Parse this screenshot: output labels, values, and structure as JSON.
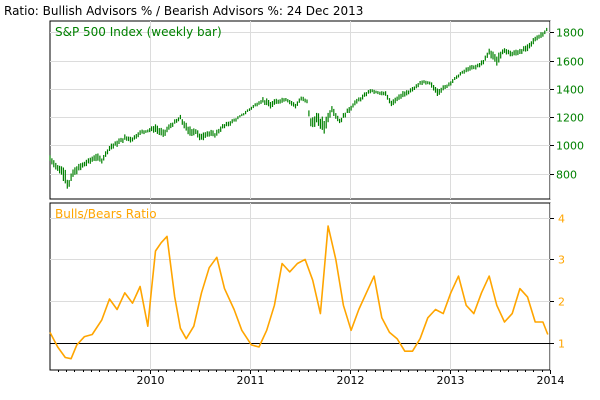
{
  "title": "Ratio: Bullish Advisors % / Bearish Advisors %: 24 Dec 2013",
  "colors": {
    "price": "#008000",
    "ratio": "#ffa500",
    "reference_line": "#000000",
    "grid": "#dcdcdc"
  },
  "chart_data": [
    {
      "type": "bar",
      "panel": "top",
      "label": "S&P 500 Index (weekly bar)",
      "xlim": [
        "2009-01-02",
        "2014-01-01"
      ],
      "ylim": [
        620,
        1880
      ],
      "yticks": [
        800,
        1000,
        1200,
        1400,
        1600,
        1800
      ],
      "grid": true,
      "y_axis_side": "right",
      "bar_style": "weekly high-low range",
      "series": [
        {
          "x": [
            "2009-01-02",
            "2009-01-30",
            "2009-02-27",
            "2009-03-09",
            "2009-03-27",
            "2009-04-24",
            "2009-05-22",
            "2009-06-19",
            "2009-07-10",
            "2009-08-07",
            "2009-09-04",
            "2009-10-02",
            "2009-10-30",
            "2009-11-27",
            "2009-12-25",
            "2010-01-22",
            "2010-02-19",
            "2010-03-19",
            "2010-04-23",
            "2010-05-21",
            "2010-06-18",
            "2010-07-02",
            "2010-07-30",
            "2010-08-27",
            "2010-09-24",
            "2010-10-22",
            "2010-11-19",
            "2010-12-17",
            "2011-01-14",
            "2011-02-18",
            "2011-03-18",
            "2011-04-15",
            "2011-05-13",
            "2011-06-17",
            "2011-07-08",
            "2011-07-29",
            "2011-08-12",
            "2011-09-02",
            "2011-09-30",
            "2011-10-28",
            "2011-11-25",
            "2011-12-23",
            "2012-01-20",
            "2012-02-17",
            "2012-03-16",
            "2012-04-13",
            "2012-05-11",
            "2012-06-01",
            "2012-06-29",
            "2012-07-27",
            "2012-08-24",
            "2012-09-21",
            "2012-10-19",
            "2012-11-16",
            "2012-12-14",
            "2013-01-11",
            "2013-02-08",
            "2013-03-08",
            "2013-04-05",
            "2013-05-03",
            "2013-05-24",
            "2013-06-21",
            "2013-07-19",
            "2013-08-16",
            "2013-09-13",
            "2013-10-11",
            "2013-11-08",
            "2013-12-06",
            "2013-12-24"
          ],
          "high": [
            935,
            870,
            850,
            740,
            840,
            880,
            910,
            945,
            920,
            1005,
            1040,
            1075,
            1070,
            1110,
            1120,
            1150,
            1110,
            1160,
            1215,
            1140,
            1130,
            1090,
            1110,
            1100,
            1150,
            1180,
            1205,
            1245,
            1290,
            1340,
            1315,
            1335,
            1345,
            1300,
            1350,
            1330,
            1200,
            1230,
            1190,
            1290,
            1190,
            1265,
            1320,
            1360,
            1405,
            1385,
            1380,
            1330,
            1370,
            1390,
            1420,
            1465,
            1455,
            1410,
            1430,
            1475,
            1520,
            1560,
            1575,
            1610,
            1690,
            1645,
            1695,
            1670,
            1690,
            1715,
            1775,
            1810,
            1840
          ],
          "low": [
            880,
            810,
            740,
            670,
            760,
            820,
            860,
            890,
            870,
            960,
            990,
            1025,
            1020,
            1070,
            1090,
            1090,
            1050,
            1120,
            1170,
            1060,
            1070,
            1020,
            1060,
            1050,
            1110,
            1140,
            1180,
            1220,
            1260,
            1300,
            1250,
            1290,
            1310,
            1260,
            1310,
            1290,
            1110,
            1140,
            1080,
            1230,
            1150,
            1210,
            1280,
            1320,
            1370,
            1360,
            1340,
            1270,
            1320,
            1340,
            1390,
            1430,
            1420,
            1350,
            1390,
            1440,
            1490,
            1520,
            1535,
            1570,
            1640,
            1560,
            1650,
            1620,
            1640,
            1660,
            1730,
            1770,
            1810
          ]
        }
      ]
    },
    {
      "type": "line",
      "panel": "bottom",
      "label": "Bulls/Bears Ratio",
      "xlim": [
        "2009-01-02",
        "2014-01-01"
      ],
      "ylim": [
        0.35,
        4.35
      ],
      "yticks": [
        1,
        2,
        3,
        4
      ],
      "reference_line_y": 1,
      "grid": true,
      "y_axis_side": "right",
      "xticks": [
        "2010",
        "2011",
        "2012",
        "2013",
        "2014"
      ],
      "series": [
        {
          "x": [
            "2009-01-02",
            "2009-01-30",
            "2009-02-27",
            "2009-03-20",
            "2009-04-10",
            "2009-05-08",
            "2009-06-05",
            "2009-07-10",
            "2009-08-07",
            "2009-09-04",
            "2009-10-02",
            "2009-10-30",
            "2009-11-27",
            "2009-12-25",
            "2010-01-08",
            "2010-01-22",
            "2010-02-12",
            "2010-03-05",
            "2010-04-02",
            "2010-04-23",
            "2010-05-14",
            "2010-06-11",
            "2010-07-09",
            "2010-08-06",
            "2010-09-03",
            "2010-10-01",
            "2010-11-05",
            "2010-12-03",
            "2011-01-07",
            "2011-02-04",
            "2011-03-04",
            "2011-04-01",
            "2011-04-29",
            "2011-05-27",
            "2011-06-24",
            "2011-07-22",
            "2011-08-19",
            "2011-09-16",
            "2011-10-14",
            "2011-11-11",
            "2011-12-09",
            "2012-01-06",
            "2012-02-03",
            "2012-03-02",
            "2012-03-30",
            "2012-04-27",
            "2012-05-25",
            "2012-06-22",
            "2012-07-20",
            "2012-08-17",
            "2012-09-14",
            "2012-10-12",
            "2012-11-09",
            "2012-12-07",
            "2013-01-04",
            "2013-02-01",
            "2013-03-01",
            "2013-03-29",
            "2013-04-26",
            "2013-05-24",
            "2013-06-21",
            "2013-07-19",
            "2013-08-16",
            "2013-09-13",
            "2013-10-11",
            "2013-11-08",
            "2013-12-06",
            "2013-12-24"
          ],
          "values": [
            1.25,
            0.9,
            0.65,
            0.62,
            0.95,
            1.15,
            1.2,
            1.55,
            2.05,
            1.8,
            2.2,
            1.95,
            2.35,
            1.4,
            2.3,
            3.2,
            3.4,
            3.55,
            2.1,
            1.35,
            1.1,
            1.4,
            2.2,
            2.8,
            3.05,
            2.3,
            1.8,
            1.3,
            0.95,
            0.9,
            1.3,
            1.9,
            2.9,
            2.7,
            2.9,
            3.0,
            2.5,
            1.7,
            3.8,
            3.0,
            1.9,
            1.3,
            1.8,
            2.2,
            2.6,
            1.6,
            1.25,
            1.1,
            0.8,
            0.8,
            1.1,
            1.6,
            1.8,
            1.7,
            2.2,
            2.6,
            1.9,
            1.7,
            2.2,
            2.6,
            1.9,
            1.5,
            1.7,
            2.3,
            2.1,
            1.5,
            1.5,
            1.2
          ]
        }
      ]
    }
  ]
}
